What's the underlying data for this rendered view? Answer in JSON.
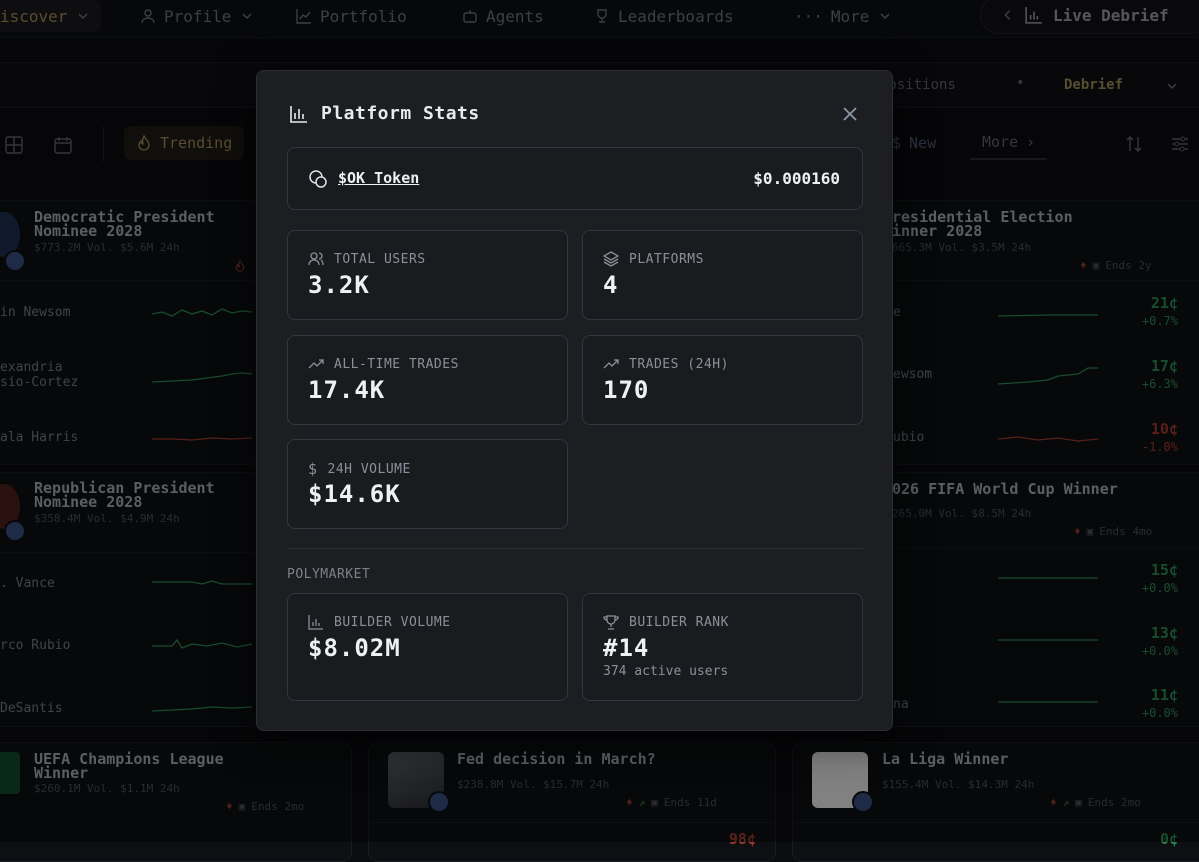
{
  "nav": {
    "discover": "iscover",
    "profile": "Profile",
    "portfolio": "Portfolio",
    "agents": "Agents",
    "leaderboards": "Leaderboards",
    "more": "More",
    "live_debrief": "Live Debrief"
  },
  "subbar": {
    "positions": "Positions",
    "debrief": "Debrief"
  },
  "filters": {
    "trending": "Trending",
    "new": "New",
    "more": "More"
  },
  "cards": {
    "dem": {
      "title": "Democratic Presidential Nominee 2028",
      "title_l1": "Democratic President",
      "title_l2": "Nominee 2028",
      "sub": "$773.2M Vol. $5.6M 24h",
      "rows": [
        "in Newsom",
        "exandria",
        "sio-Cortez",
        "ala Harris"
      ]
    },
    "pres": {
      "title_l1": "residential Election",
      "title_l2": "inner 2028",
      "sub": "665.3M Vol. $3.5M 24h",
      "ends": "Ends 2y",
      "rows": [
        "e",
        "ewsom",
        "ubio"
      ],
      "prices": [
        "21¢",
        "17¢",
        "10¢"
      ],
      "changes": [
        "+0.7%",
        "+6.3%",
        "-1.0%"
      ]
    },
    "rep": {
      "title_l1": "Republican President",
      "title_l2": "Nominee 2028",
      "sub": "$358.4M Vol. $4.9M 24h",
      "rows": [
        ". Vance",
        "rco Rubio",
        " DeSantis"
      ]
    },
    "fifa": {
      "title": "026 FIFA World Cup Winner",
      "sub": "265.0M Vol. $8.5M 24h",
      "ends": "Ends 4mo",
      "rows": [
        "",
        "",
        "na"
      ],
      "prices": [
        "15¢",
        "13¢",
        "11¢"
      ],
      "changes": [
        "+0.0%",
        "+0.0%",
        "+0.0%"
      ]
    },
    "ucl": {
      "title_l1": "UEFA Champions League",
      "title_l2": "Winner",
      "sub": "$260.1M Vol. $1.1M 24h",
      "ends": "Ends 2mo"
    },
    "fed": {
      "title": "Fed decision in March?",
      "sub": "$238.8M Vol. $15.7M 24h",
      "ends": "Ends 11d",
      "price": "98¢"
    },
    "laliga": {
      "title": "La Liga Winner",
      "sub": "$155.4M Vol. $14.3M 24h",
      "ends": "Ends 2mo",
      "price": "0¢"
    }
  },
  "modal": {
    "title": "Platform Stats",
    "token_label": "$OK Token",
    "token_price": "$0.000160",
    "stats": {
      "total_users_label": "TOTAL USERS",
      "total_users": "3.2K",
      "platforms_label": "PLATFORMS",
      "platforms": "4",
      "alltime_label": "ALL-TIME TRADES",
      "alltime": "17.4K",
      "trades24_label": "TRADES (24H)",
      "trades24": "170",
      "volume_label": "24H VOLUME",
      "volume": "$14.6K"
    },
    "section": "POLYMARKET",
    "builder_volume_label": "BUILDER VOLUME",
    "builder_volume": "$8.02M",
    "builder_rank_label": "BUILDER RANK",
    "builder_rank": "#14",
    "active_users": "374 active users"
  },
  "colors": {
    "green": "#2b8a52",
    "red": "#a23b2e",
    "accent": "#a08c5a",
    "modal_bg": "#1d1e22"
  }
}
